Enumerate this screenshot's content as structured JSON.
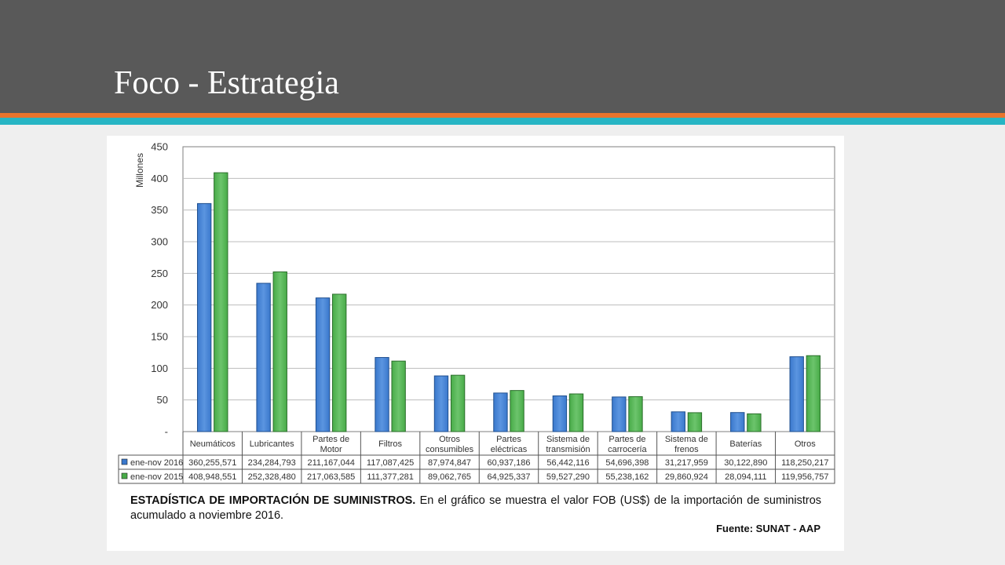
{
  "slide": {
    "title": "Foco - Estrategia",
    "colors": {
      "header": "#595959",
      "stripe_orange": "#e8742d",
      "stripe_teal": "#27b5c4",
      "background": "#efefef"
    }
  },
  "chart_data": {
    "type": "bar",
    "ylabel": "Millones",
    "ylim": [
      0,
      450
    ],
    "yticks": [
      0,
      50,
      100,
      150,
      200,
      250,
      300,
      350,
      400,
      450
    ],
    "ytick_labels": [
      "-",
      "50",
      "100",
      "150",
      "200",
      "250",
      "300",
      "350",
      "400",
      "450"
    ],
    "grid": true,
    "categories": [
      [
        "Neumáticos"
      ],
      [
        "Lubricantes"
      ],
      [
        "Partes de",
        "Motor"
      ],
      [
        "Filtros"
      ],
      [
        "Otros",
        "consumibles"
      ],
      [
        "Partes",
        "eléctricas"
      ],
      [
        "Sistema de",
        "transmisión"
      ],
      [
        "Partes de",
        "carrocería"
      ],
      [
        "Sistema de",
        "frenos"
      ],
      [
        "Baterías"
      ],
      [
        "Otros"
      ]
    ],
    "series": [
      {
        "name": "ene-nov 2016",
        "color": "#3a78cc",
        "values": [
          360255571,
          234284793,
          211167044,
          117087425,
          87974847,
          60937186,
          56442116,
          54696398,
          31217959,
          30122890,
          118250217
        ],
        "labels": [
          "360,255,571",
          "234,284,793",
          "211,167,044",
          "117,087,425",
          "87,974,847",
          "60,937,186",
          "56,442,116",
          "54,696,398",
          "31,217,959",
          "30,122,890",
          "118,250,217"
        ]
      },
      {
        "name": "ene-nov 2015",
        "color": "#48ab48",
        "values": [
          408948551,
          252328480,
          217063585,
          111377281,
          89062765,
          64925337,
          59527290,
          55238162,
          29860924,
          28094111,
          119956757
        ],
        "labels": [
          "408,948,551",
          "252,328,480",
          "217,063,585",
          "111,377,281",
          "89,062,765",
          "64,925,337",
          "59,527,290",
          "55,238,162",
          "29,860,924",
          "28,094,111",
          "119,956,757"
        ]
      }
    ],
    "value_scale": 1000000,
    "legend_placement": "data-table-left"
  },
  "caption": {
    "bold": "ESTADÍSTICA DE IMPORTACIÓN DE SUMINISTROS.",
    "text": " En el gráfico se muestra el valor FOB (US$) de la importación de suministros acumulado a noviembre 2016.",
    "source": "Fuente: SUNAT - AAP"
  }
}
